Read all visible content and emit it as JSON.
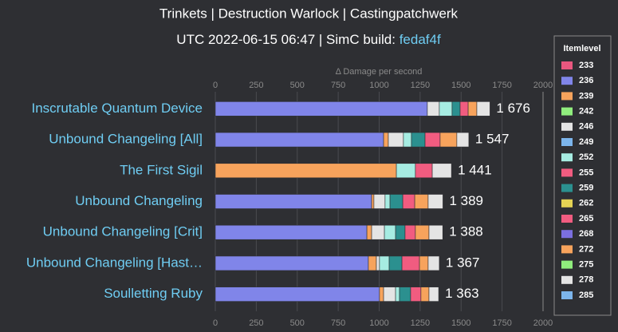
{
  "chart_data": {
    "type": "stacked-bar-horizontal",
    "title": "Trinkets | Destruction Warlock | Castingpatchwerk",
    "subtitle": "UTC 2022-06-15 06:47 | SimC build: ",
    "build_link": "fedaf4f",
    "x_axis_title": "Δ Damage per second",
    "legend_title": "Itemlevel",
    "categories": [
      "Inscrutable Quantum Device",
      "Unbound Changeling [All]",
      "The First Sigil",
      "Unbound Changeling",
      "Unbound Changeling [Crit]",
      "Unbound Changeling [Hast…",
      "Soulletting Ruby"
    ],
    "xlim": [
      0,
      2000
    ],
    "xticks": [
      0,
      250,
      500,
      750,
      1000,
      1250,
      1500,
      1750,
      2000
    ],
    "grid": true,
    "series": [
      {
        "name": "233",
        "color": "#e9577f",
        "values": [
          null,
          null,
          null,
          null,
          null,
          null,
          null
        ]
      },
      {
        "name": "236",
        "color": "#8085e9",
        "values": [
          1294,
          1027,
          null,
          954,
          925,
          934,
          1002
        ]
      },
      {
        "name": "239",
        "color": "#f7a35c",
        "values": [
          null,
          29,
          1105,
          14,
          29,
          49,
          25
        ]
      },
      {
        "name": "242",
        "color": "#90ed7d",
        "values": [
          null,
          null,
          null,
          null,
          null,
          null,
          null
        ]
      },
      {
        "name": "246",
        "color": "#e4e4e4",
        "values": [
          73,
          92,
          null,
          68,
          78,
          19,
          73
        ]
      },
      {
        "name": "249",
        "color": "#7cb5ec",
        "values": [
          null,
          null,
          null,
          null,
          null,
          null,
          null
        ]
      },
      {
        "name": "252",
        "color": "#a6ece2",
        "values": [
          78,
          49,
          116,
          30,
          68,
          59,
          24
        ]
      },
      {
        "name": "255",
        "color": "#f15c80",
        "values": [
          null,
          null,
          null,
          null,
          null,
          null,
          null
        ]
      },
      {
        "name": "259",
        "color": "#2b908f",
        "values": [
          49,
          83,
          null,
          78,
          58,
          78,
          68
        ]
      },
      {
        "name": "262",
        "color": "#e4d354",
        "values": [
          null,
          null,
          null,
          null,
          null,
          null,
          null
        ]
      },
      {
        "name": "265",
        "color": "#f15c80",
        "values": [
          49,
          92,
          103,
          73,
          63,
          107,
          63
        ]
      },
      {
        "name": "268",
        "color": "#7b6fe0",
        "values": [
          null,
          null,
          null,
          null,
          null,
          null,
          null
        ]
      },
      {
        "name": "272",
        "color": "#f7a35c",
        "values": [
          53,
          102,
          null,
          82,
          83,
          53,
          49
        ]
      },
      {
        "name": "275",
        "color": "#90ed7d",
        "values": [
          null,
          null,
          null,
          null,
          null,
          null,
          null
        ]
      },
      {
        "name": "278",
        "color": "#e4e4e4",
        "values": [
          80,
          73,
          117,
          90,
          84,
          68,
          59
        ]
      },
      {
        "name": "285",
        "color": "#7cb5ec",
        "values": [
          null,
          null,
          null,
          null,
          null,
          null,
          null
        ]
      }
    ],
    "totals": {
      "values": [
        1676,
        1547,
        1441,
        1389,
        1388,
        1367,
        1363
      ],
      "value_labels": [
        "1 676",
        "1 547",
        "1 441",
        "1 389",
        "1 388",
        "1 367",
        "1 363"
      ]
    }
  }
}
